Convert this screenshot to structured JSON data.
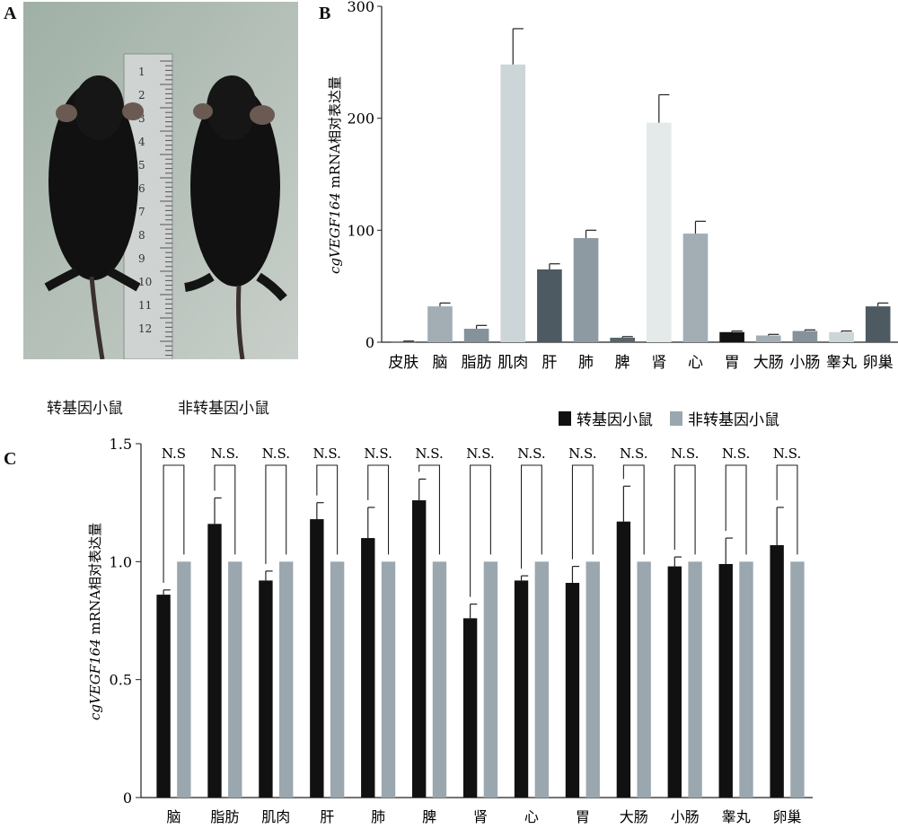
{
  "panels": {
    "a": "A",
    "b": "B",
    "c": "C"
  },
  "photo": {
    "left_caption": "转基因小鼠",
    "right_caption": "非转基因小鼠",
    "ruler_numbers": [
      "1",
      "2",
      "3",
      "4",
      "5",
      "6",
      "7",
      "8",
      "9",
      "10",
      "11",
      "12"
    ]
  },
  "colors": {
    "transgenic": "#111111",
    "non_transgenic": "#9aa7ae",
    "axis": "#222222"
  },
  "chart_data": [
    {
      "type": "bar",
      "panel": "B",
      "ylabel_italic": "cgVEGF164",
      "ylabel_rest": " mRNA相对表达量",
      "ylim": [
        0,
        300
      ],
      "yticks": [
        "0",
        "100",
        "200",
        "300"
      ],
      "categories": [
        "皮肤",
        "脑",
        "脂肪",
        "肌肉",
        "肝",
        "肺",
        "脾",
        "肾",
        "心",
        "胃",
        "大肠",
        "小肠",
        "睾丸",
        "卵巢"
      ],
      "values": [
        0.5,
        32,
        12,
        248,
        65,
        93,
        4,
        196,
        97,
        9,
        6,
        10,
        9,
        32
      ],
      "errors": [
        0.5,
        3,
        3,
        32,
        5,
        7,
        1,
        25,
        11,
        1,
        1,
        1,
        1,
        3
      ],
      "bar_colors": [
        "#4d5a62",
        "#a2aeb4",
        "#86929a",
        "#ccd5d7",
        "#4d5a62",
        "#8e9aa1",
        "#59656d",
        "#e4e9ea",
        "#a2aeb4",
        "#111111",
        "#a2aeb4",
        "#86929a",
        "#ccd5d7",
        "#4d5a62"
      ]
    },
    {
      "type": "bar",
      "panel": "C",
      "ylabel_italic": "cgVEGF164",
      "ylabel_rest": " mRNA相对表达量",
      "ylim": [
        0,
        1.5
      ],
      "yticks": [
        "0",
        "0.5",
        "1.0",
        "1.5"
      ],
      "categories": [
        "脑",
        "脂肪",
        "肌肉",
        "肝",
        "肺",
        "脾",
        "肾",
        "心",
        "胃",
        "大肠",
        "小肠",
        "睾丸",
        "卵巢"
      ],
      "series": [
        {
          "name": "转基因小鼠",
          "values": [
            0.86,
            1.16,
            0.92,
            1.18,
            1.1,
            1.26,
            0.76,
            0.92,
            0.91,
            1.17,
            0.98,
            0.99,
            1.07
          ],
          "errors": [
            0.02,
            0.11,
            0.04,
            0.07,
            0.13,
            0.09,
            0.06,
            0.02,
            0.07,
            0.15,
            0.04,
            0.11,
            0.16
          ]
        },
        {
          "name": "非转基因小鼠",
          "values": [
            1,
            1,
            1,
            1,
            1,
            1,
            1,
            1,
            1,
            1,
            1,
            1,
            1
          ],
          "errors": [
            0,
            0,
            0,
            0,
            0,
            0,
            0,
            0,
            0,
            0,
            0,
            0,
            0
          ]
        }
      ],
      "significance": [
        "N.S",
        "N.S.",
        "N.S.",
        "N.S.",
        "N.S.",
        "N.S.",
        "N.S.",
        "N.S.",
        "N.S.",
        "N.S.",
        "N.S.",
        "N.S.",
        "N.S."
      ],
      "legend_position": "top-right"
    }
  ]
}
